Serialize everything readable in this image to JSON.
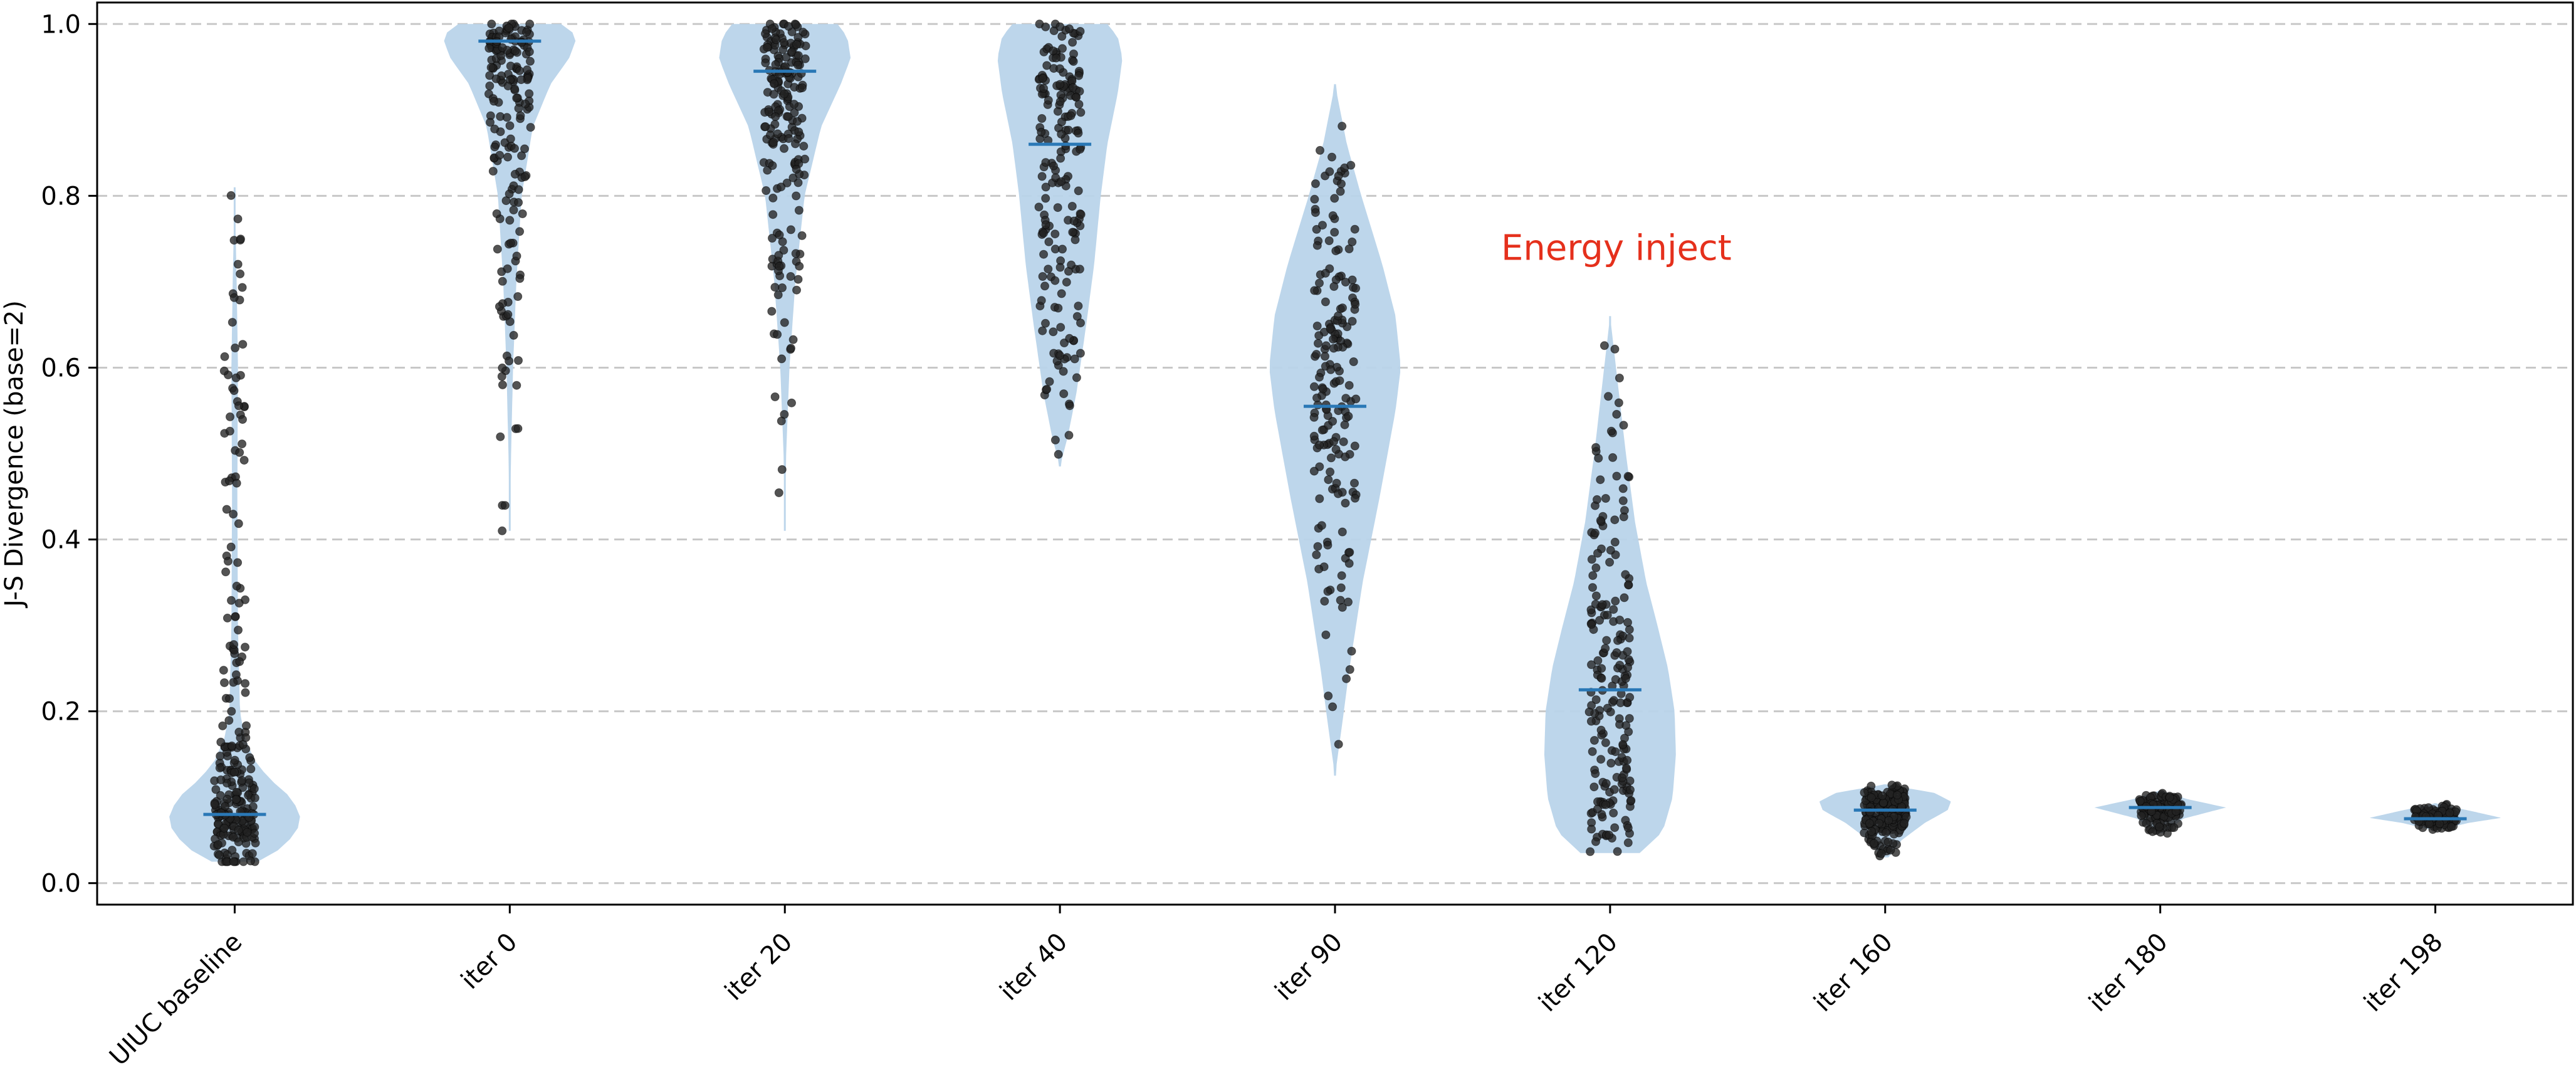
{
  "chart_data": {
    "type": "violin",
    "title": "",
    "xlabel": "",
    "ylabel": "J-S Divergence (base=2)",
    "ylim": [
      -0.025,
      1.025
    ],
    "yticks": [
      "0.0",
      "0.2",
      "0.4",
      "0.6",
      "0.8",
      "1.0"
    ],
    "ytick_values": [
      0.0,
      0.2,
      0.4,
      0.6,
      0.8,
      1.0
    ],
    "grid": "y-dashed",
    "categories": [
      "UIUC baseline",
      "iter 0",
      "iter 20",
      "iter 40",
      "iter 90",
      "iter 120",
      "iter 160",
      "iter 180",
      "iter 198"
    ],
    "medians": [
      0.08,
      0.98,
      0.945,
      0.86,
      0.555,
      0.225,
      0.085,
      0.088,
      0.075
    ],
    "ranges": [
      [
        0.025,
        0.81
      ],
      [
        0.41,
        1.0
      ],
      [
        0.41,
        1.0
      ],
      [
        0.485,
        1.0
      ],
      [
        0.125,
        0.93
      ],
      [
        0.035,
        0.66
      ],
      [
        0.03,
        0.115
      ],
      [
        0.058,
        0.108
      ],
      [
        0.062,
        0.093
      ]
    ],
    "annotation": {
      "text": "Energy inject",
      "x": 5,
      "y": 0.74
    },
    "colors": {
      "violin": "#b9d4ea",
      "median": "#2a78b6",
      "point": "#222222",
      "annotation": "#e5301c",
      "grid": "#c8c8c8"
    }
  }
}
